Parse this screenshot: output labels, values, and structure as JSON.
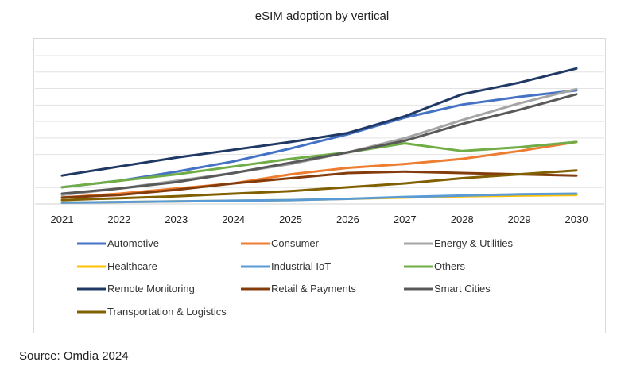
{
  "source": "Source: Omdia 2024",
  "chart_data": {
    "type": "line",
    "title": "eSIM adoption by vertical",
    "xlabel": "",
    "ylabel": "",
    "x": [
      "2021",
      "2022",
      "2023",
      "2024",
      "2025",
      "2026",
      "2027",
      "2028",
      "2029",
      "2030"
    ],
    "grid": true,
    "y_tick_labels_shown": false,
    "legend_position": "bottom",
    "series": [
      {
        "name": "Automotive",
        "color": "#4472C4",
        "values": [
          13,
          18,
          25,
          33,
          43,
          54,
          67,
          77,
          83,
          88
        ]
      },
      {
        "name": "Consumer",
        "color": "#ED7D31",
        "values": [
          5,
          8,
          12,
          16,
          23,
          28,
          31,
          35,
          41,
          48
        ]
      },
      {
        "name": "Energy & Utilities",
        "color": "#A5A5A5",
        "values": [
          7,
          12,
          18,
          24,
          31,
          40,
          51,
          65,
          78,
          89
        ]
      },
      {
        "name": "Healthcare",
        "color": "#FFC000",
        "values": [
          1,
          1.5,
          2,
          2.5,
          3,
          4,
          5,
          6,
          6.5,
          7
        ]
      },
      {
        "name": "Industrial IoT",
        "color": "#5B9BD5",
        "values": [
          1,
          1.5,
          2,
          2.5,
          3,
          4,
          5.5,
          6.5,
          7.5,
          8
        ]
      },
      {
        "name": "Others",
        "color": "#70AD47",
        "values": [
          13,
          18,
          23,
          29,
          35,
          40,
          47,
          41,
          44,
          48
        ]
      },
      {
        "name": "Remote Monitoring",
        "color": "#1F3864",
        "values": [
          22,
          29,
          36,
          42,
          48,
          55,
          68,
          85,
          94,
          105
        ]
      },
      {
        "name": "Retail & Payments",
        "color": "#843C0C",
        "values": [
          5,
          7,
          11,
          16,
          20,
          24,
          25,
          24,
          23,
          22
        ]
      },
      {
        "name": "Smart Cities",
        "color": "#595959",
        "values": [
          8,
          12,
          17,
          24,
          32,
          40,
          49,
          62,
          73,
          85
        ]
      },
      {
        "name": "Transportation & Logistics",
        "color": "#806000",
        "values": [
          3,
          4.5,
          6,
          8,
          10,
          13,
          16,
          20,
          23,
          26
        ]
      }
    ]
  }
}
